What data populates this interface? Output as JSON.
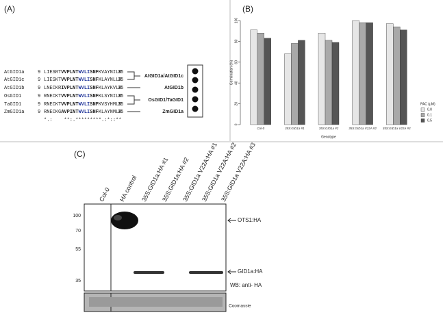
{
  "panel_labels": [
    "(A)",
    "(B)",
    "(C)"
  ],
  "alignment": {
    "rows": [
      {
        "name": "AtGID1a",
        "start": 9,
        "segments": [
          "LIESRT",
          "VVPLNT",
          "WVLI",
          "SNF",
          "KVAYNILR"
        ],
        "end": 35
      },
      {
        "name": "AtGID1c",
        "start": 9,
        "segments": [
          "LIESKT",
          "VVPLNT",
          "WVLI",
          "SNF",
          "KLAYNLLR"
        ],
        "end": 35
      },
      {
        "name": "AtGID1b",
        "start": 9,
        "segments": [
          "LNECKR",
          "IVPLNT",
          "WVLI",
          "SNF",
          "KLAYKVLR"
        ],
        "end": 35
      },
      {
        "name": "OsGID1",
        "start": 9,
        "segments": [
          "RNECKT",
          "VVPLNT",
          "WVLI",
          "SNF",
          "KLSYNILR"
        ],
        "end": 35
      },
      {
        "name": "TaGID1",
        "start": 9,
        "segments": [
          "RNECKT",
          "VVPLNT",
          "WVLI",
          "SNF",
          "KVSYHMLR"
        ],
        "end": 35
      },
      {
        "name": "ZmGID1a",
        "start": 9,
        "segments": [
          "RNECKG",
          "AVPINT",
          "WVLI",
          "SNF",
          "KLAYNMLR"
        ],
        "end": 35
      }
    ],
    "consensus": "*.:    **:.*********.:*::**",
    "groups": [
      "AtGID1a/AtGID1c",
      "AtGID1b",
      "OsGID1/TaGID1",
      "ZmGID1a"
    ]
  },
  "chart_data": {
    "type": "bar",
    "x_label": "Genotype",
    "y_label": "Germination (%)",
    "categories": [
      "Col-0",
      "35S:GID1a #1",
      "35S:GID1a #2",
      "35S:GID1a V22A #2",
      "35S:GID1a V22A #3"
    ],
    "legend_title": "PAC (μM)",
    "series": [
      {
        "name": "0.0",
        "color": "#e6e6e6",
        "values": [
          91,
          68,
          88,
          100,
          97
        ]
      },
      {
        "name": "0.1",
        "color": "#a9a9a9",
        "values": [
          88,
          78,
          81,
          98,
          94
        ]
      },
      {
        "name": "0.5",
        "color": "#555555",
        "values": [
          83,
          81,
          79,
          98,
          91
        ]
      }
    ],
    "ylim": [
      0,
      100
    ],
    "yticks": [
      0,
      20,
      40,
      60,
      80,
      100
    ],
    "legend": "right"
  },
  "blot": {
    "lanes": [
      "Col-0",
      "HA control",
      "35S:GID1a:HA #1",
      "35S:GID1a:HA #2",
      "35S:GID1a V22A:HA #1",
      "35S:GID1a V22A:HA #2",
      "35S:GID1a V22A:HA #3"
    ],
    "markers": [
      100,
      70,
      55,
      35
    ],
    "bands": [
      "OTS1:HA",
      "GID1a:HA"
    ],
    "antibody": "WB: anti- HA",
    "loading": "Coomassie"
  }
}
